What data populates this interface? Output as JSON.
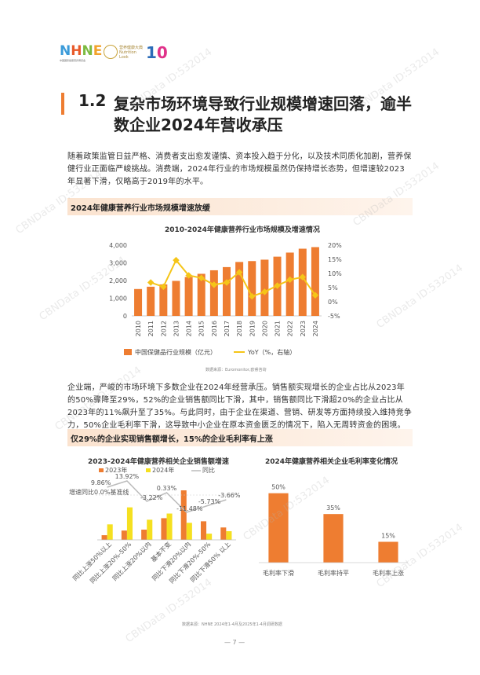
{
  "header": {
    "logo_text": "NHNE",
    "logo_sub": "中国国际健康营养博览会",
    "partner_logo": "营养健康大典 Nutrition Look",
    "partner_num": "10"
  },
  "section": {
    "number": "1.2",
    "title_line1": "复杂市场环境导致行业规模增速回落，逾半",
    "title_line2": "数企业2024年营收承压"
  },
  "paragraphs": {
    "p1": "随着政策监管日益严格、消费者支出愈发谨慎、资本投入趋于分化，以及技术同质化加剧，营养保健行业正面临严峻挑战。消费端，2024年行业的市场规模虽然仍保持增长态势，但增速较2023年显著下滑，仅略高于2019年的水平。",
    "p2": "企业端，严峻的市场环境下多数企业在2024年经营承压。销售额实现增长的企业占比从2023年的50%骤降至29%，52%的企业销售额同比下滑，其中，销售额同比下滑超20%的企业占比从2023年的11%飙升至了35%。与此同时，由于企业在渠道、营销、研发等方面持续投入维持竞争力，50%企业毛利率下滑，这导致中小企业在原本资金匮乏的情况下，陷入无周转资金的困境。"
  },
  "banners": {
    "b1": "2024年健康营养行业市场规模增速放缓",
    "b2": "仅29%的企业实现销售额增长，15%的企业毛利率有上涨"
  },
  "sources": {
    "s1": "数据来源：Euromonitor,欧睿咨询",
    "s2": "数据来源：NHNE 2024年1-4月及2025年1-4月调研数据"
  },
  "page_number": "7",
  "watermark": "CBNData ID:532014",
  "chart_data": [
    {
      "type": "bar+line",
      "title": "2010-2024年健康营养行业市场规模及增速情况",
      "categories": [
        "2010",
        "2011",
        "2012",
        "2013",
        "2014",
        "2015",
        "2016",
        "2017",
        "2018",
        "2019",
        "2020",
        "2021",
        "2022",
        "2023",
        "2024"
      ],
      "series": [
        {
          "name": "中国保健品行业规模（亿元）",
          "type": "bar",
          "axis": "left",
          "values": [
            1520,
            1650,
            1780,
            1980,
            2200,
            2380,
            2580,
            2760,
            3050,
            3100,
            3180,
            3350,
            3580,
            3800,
            3890
          ]
        },
        {
          "name": "YoY（%，右轴）",
          "type": "line",
          "axis": "right",
          "values": [
            null,
            6.8,
            5.3,
            14.7,
            9.3,
            8.4,
            6.0,
            6.8,
            10.4,
            1.9,
            3.5,
            5.7,
            7.8,
            8.7,
            2.3
          ]
        }
      ],
      "ylim_left": [
        0,
        4000
      ],
      "yticks_left": [
        "0",
        "1,000",
        "2,000",
        "3,000",
        "4,000"
      ],
      "ylim_right": [
        -5,
        20
      ],
      "yticks_right": [
        "-5%",
        "0%",
        "5%",
        "10%",
        "15%",
        "20%"
      ],
      "bar_color": "#ee7d31",
      "line_color": "#f5c518",
      "legend": "bottom"
    },
    {
      "type": "bar",
      "title": "2023-2024年健康营养相关企业销售额增速",
      "categories": [
        "同比上涨50%以上",
        "同比上涨20%-50%",
        "同比上涨20%以内",
        "基本不变",
        "同比下滑20%以内",
        "同比下滑20%-50%",
        "同比下滑50% 以上"
      ],
      "series": [
        {
          "name": "2023年",
          "color": "#ee7d31",
          "values": [
            1.5,
            3.0,
            3.3,
            7.0,
            16.0,
            6.0,
            4.0
          ]
        },
        {
          "name": "2024年",
          "color": "#f5e020",
          "values": [
            5.0,
            10.5,
            6.5,
            8.5,
            5.5,
            2.0,
            2.8
          ]
        }
      ],
      "line": {
        "name": "同比",
        "color": "#bbbbbb",
        "labels": [
          "9.86%",
          "13.92%",
          "-3.22%",
          "0.33%",
          "-11.48%",
          "-5.73%",
          "-3.66%"
        ]
      },
      "annotation": "增速同比0.0%基准线",
      "legend": "top"
    },
    {
      "type": "bar",
      "title": "2024年健康营养相关企业毛利率变化情况",
      "categories": [
        "毛利率下滑",
        "毛利率持平",
        "毛利率上涨"
      ],
      "values": [
        50,
        35,
        15
      ],
      "value_labels": [
        "50%",
        "35%",
        "15%"
      ],
      "bar_color": "#ee7d31",
      "ylim": [
        0,
        60
      ]
    }
  ]
}
